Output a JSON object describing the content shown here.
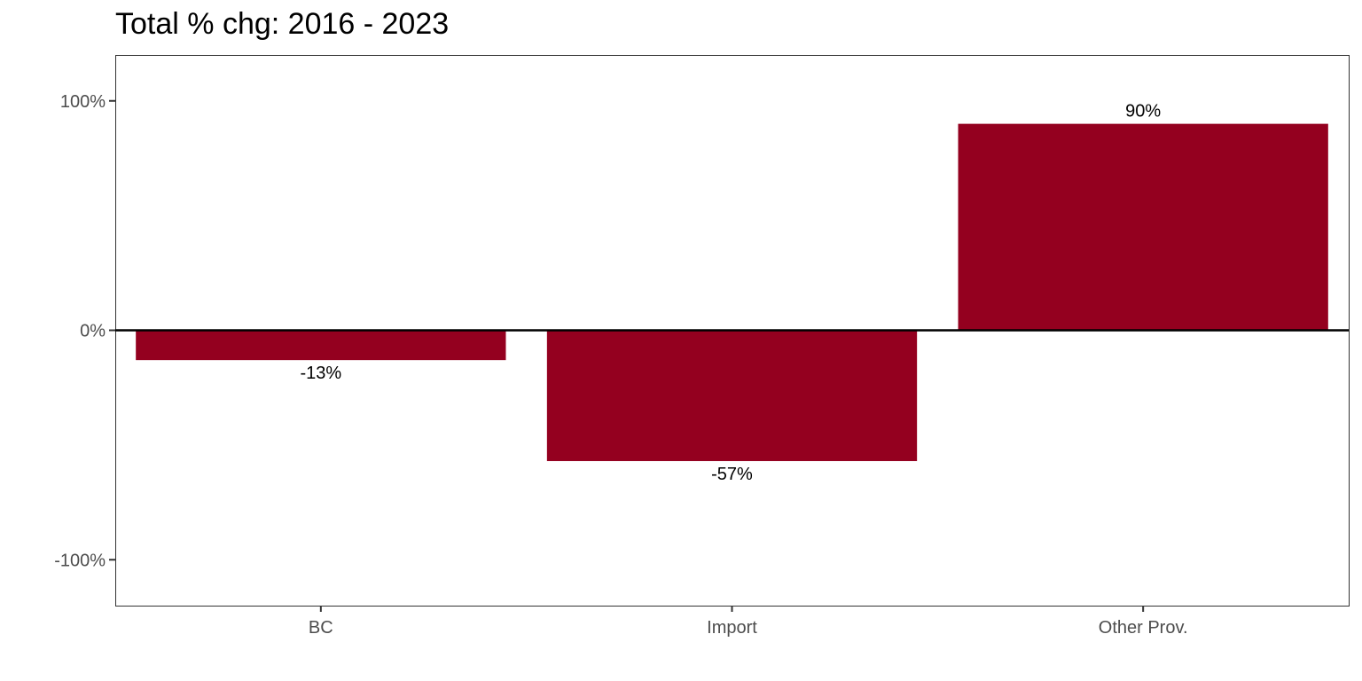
{
  "chart_data": {
    "type": "bar",
    "title": "Total % chg: 2016 - 2023",
    "categories": [
      "BC",
      "Import",
      "Other Prov."
    ],
    "values": [
      -13,
      -57,
      90
    ],
    "data_labels": [
      "-13%",
      "-57%",
      "90%"
    ],
    "xlabel": "",
    "ylabel": "",
    "ylim": [
      -120,
      120
    ],
    "yticks": [
      -100,
      0,
      100
    ],
    "ytick_labels": [
      "-100%",
      "0%",
      "100%"
    ],
    "grid": false,
    "legend": "none",
    "bar_color": "#94001f",
    "zero_line": true
  }
}
